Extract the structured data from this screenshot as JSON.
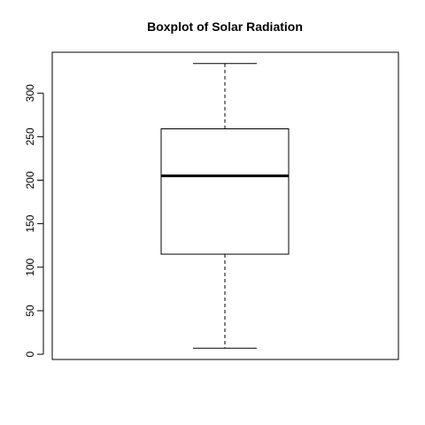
{
  "chart_data": {
    "type": "boxplot",
    "title": "Boxplot of Solar Radiation",
    "xlabel": "",
    "ylabel": "",
    "ylim": [
      -6,
      347
    ],
    "yticks": [
      0,
      50,
      100,
      150,
      200,
      250,
      300
    ],
    "ytick_labels": [
      "0",
      "50",
      "100",
      "150",
      "200",
      "250",
      "300"
    ],
    "grid": false,
    "legend": "none",
    "box": {
      "min": 7,
      "q1": 115,
      "median": 205,
      "q3": 259,
      "max": 334
    }
  }
}
